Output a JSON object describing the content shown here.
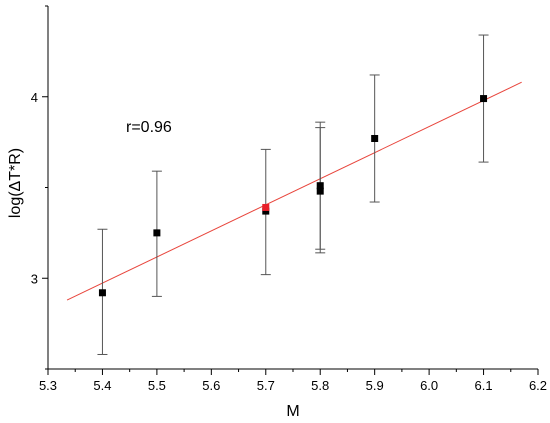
{
  "chart_data": {
    "type": "scatter",
    "xlabel": "M",
    "ylabel": "log(ΔT*R)",
    "xlim": [
      5.3,
      6.2
    ],
    "ylim": [
      2.5,
      4.5
    ],
    "xticks": [
      "5.3",
      "5.4",
      "5.5",
      "5.6",
      "5.7",
      "5.8",
      "5.9",
      "6.0",
      "6.1",
      "6.2"
    ],
    "yticks": [
      "3",
      "4"
    ],
    "annotation": "r=0.96",
    "grid": false,
    "points": [
      {
        "x": 5.4,
        "y": 2.92,
        "err_low": 2.58,
        "err_high": 3.27
      },
      {
        "x": 5.5,
        "y": 3.25,
        "err_low": 2.9,
        "err_high": 3.59
      },
      {
        "x": 5.7,
        "y": 3.37,
        "err_low": 3.02,
        "err_high": 3.71
      },
      {
        "x": 5.8,
        "y": 3.48,
        "err_low": 3.14,
        "err_high": 3.83
      },
      {
        "x": 5.8,
        "y": 3.51,
        "err_low": 3.16,
        "err_high": 3.86
      },
      {
        "x": 5.9,
        "y": 3.77,
        "err_low": 3.42,
        "err_high": 4.12
      },
      {
        "x": 6.1,
        "y": 3.99,
        "err_low": 3.64,
        "err_high": 4.34
      }
    ],
    "highlight_point": {
      "x": 5.7,
      "y": 3.39
    },
    "fit_line": {
      "x_start": 5.335,
      "x_end": 6.17,
      "y_start": 2.88,
      "y_end": 4.08
    },
    "colors": {
      "points": "#000000",
      "fit": "#e8453c",
      "highlight": "#e8202a",
      "errorbar": "#555555",
      "axis": "#000000"
    }
  }
}
